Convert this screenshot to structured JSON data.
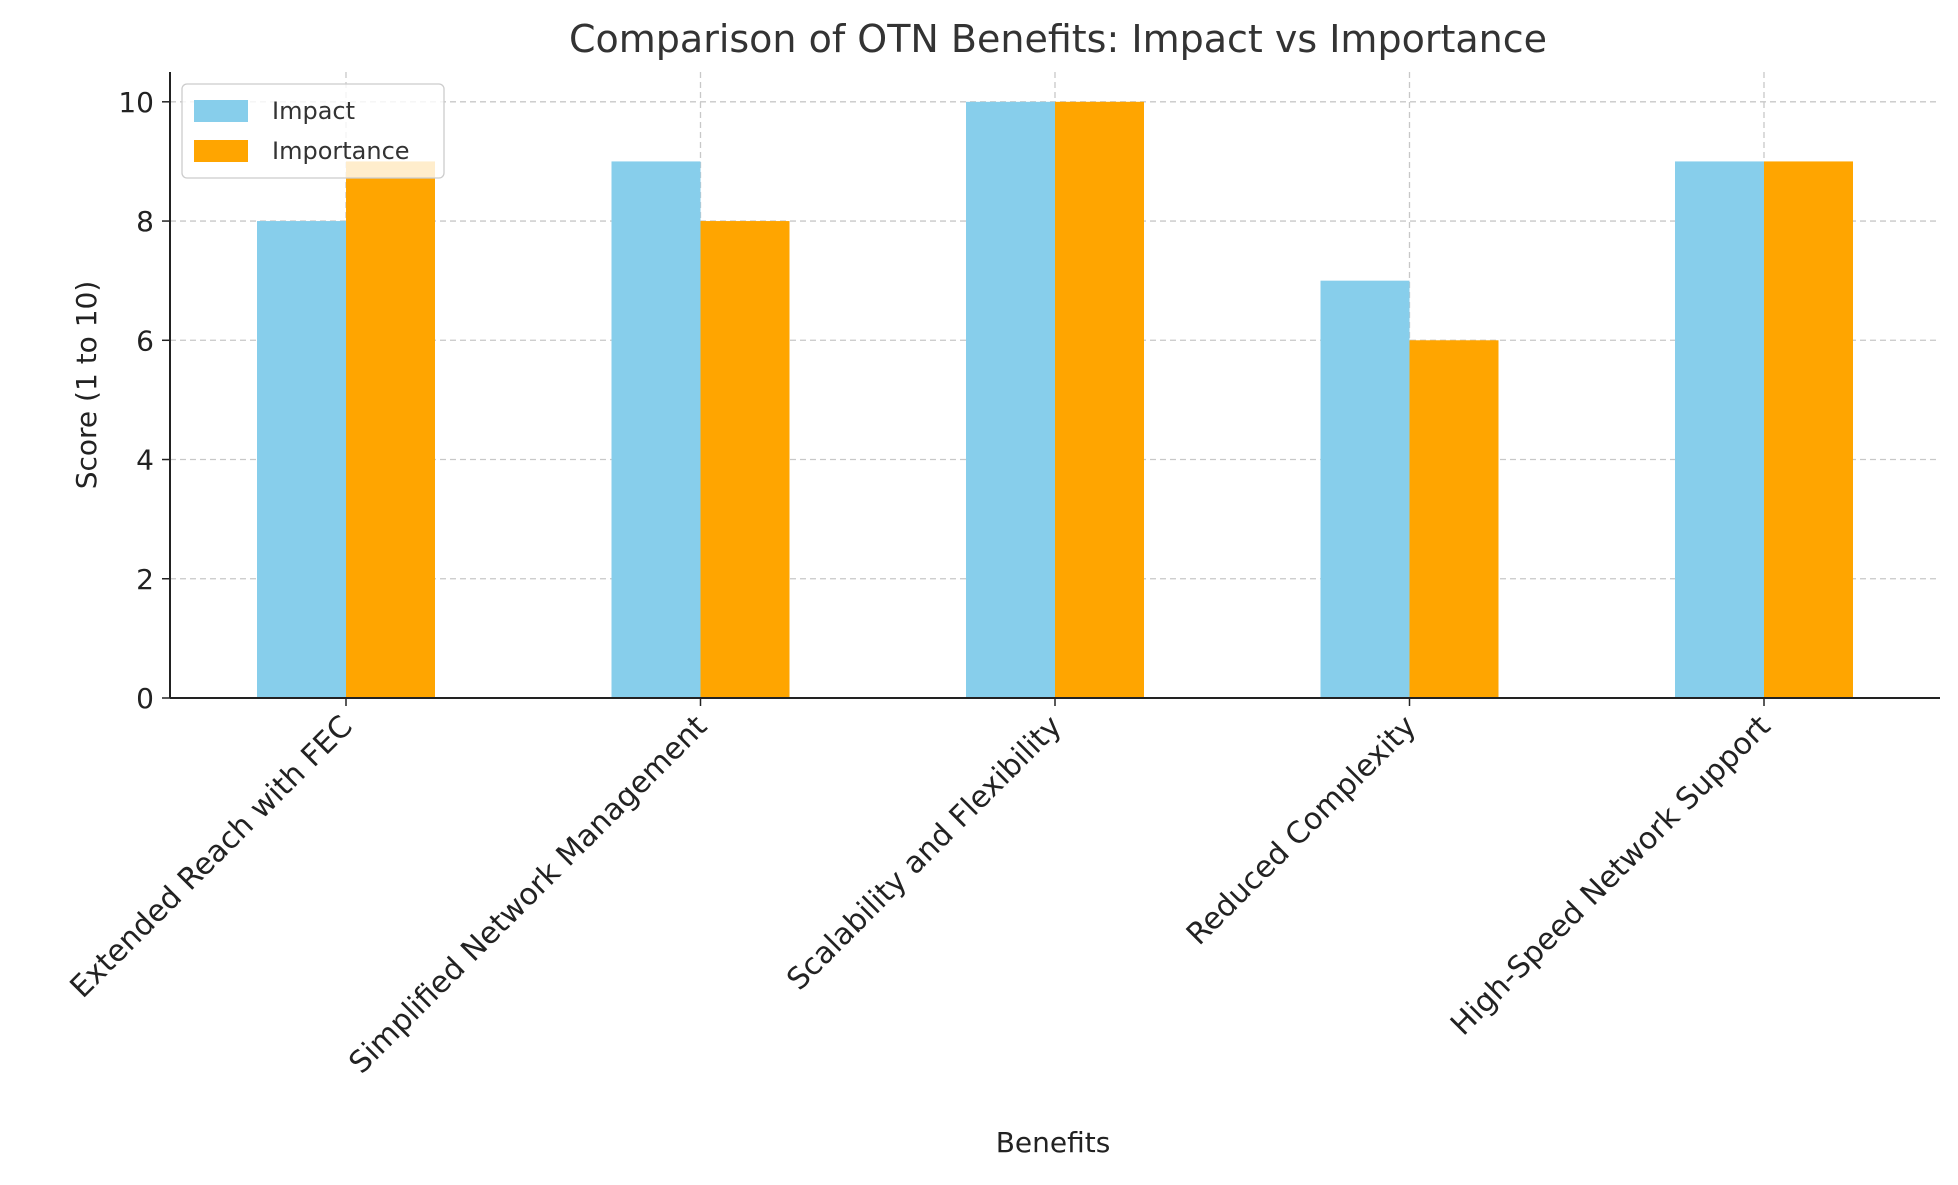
{
  "chart_data": {
    "type": "bar",
    "title": "Comparison of OTN Benefits: Impact vs Importance",
    "xlabel": "Benefits",
    "ylabel": "Score (1 to 10)",
    "ylim": [
      0,
      10.5
    ],
    "yticks": [
      0,
      2,
      4,
      6,
      8,
      10
    ],
    "grid": true,
    "legend_position": "top-left",
    "categories": [
      "Extended Reach with FEC",
      "Simplified Network Management",
      "Scalability and Flexibility",
      "Reduced Complexity",
      "High-Speed Network Support"
    ],
    "series": [
      {
        "name": "Impact",
        "color": "#87ceeb",
        "values": [
          8,
          9,
          10,
          7,
          9
        ]
      },
      {
        "name": "Importance",
        "color": "#ffa500",
        "values": [
          9,
          8,
          10,
          6,
          9
        ]
      }
    ]
  }
}
